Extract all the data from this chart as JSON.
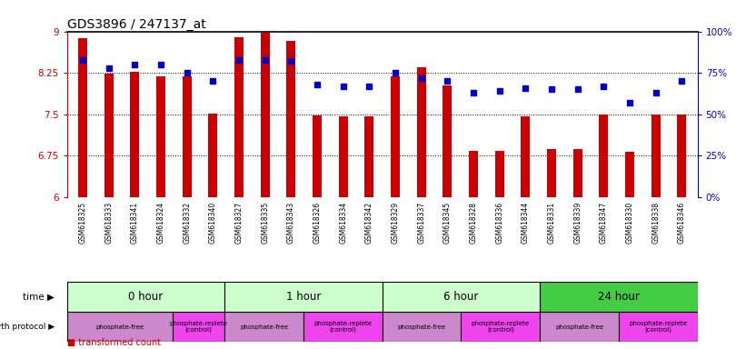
{
  "title": "GDS3896 / 247137_at",
  "samples": [
    "GSM618325",
    "GSM618333",
    "GSM618341",
    "GSM618324",
    "GSM618332",
    "GSM618340",
    "GSM618327",
    "GSM618335",
    "GSM618343",
    "GSM618326",
    "GSM618334",
    "GSM618342",
    "GSM618329",
    "GSM618337",
    "GSM618345",
    "GSM618328",
    "GSM618336",
    "GSM618344",
    "GSM618331",
    "GSM618339",
    "GSM618347",
    "GSM618330",
    "GSM618338",
    "GSM618346"
  ],
  "transformed_count": [
    8.88,
    8.23,
    8.27,
    8.19,
    8.18,
    7.52,
    8.9,
    8.97,
    8.83,
    7.48,
    7.47,
    7.46,
    8.19,
    8.35,
    8.02,
    6.84,
    6.84,
    7.46,
    6.88,
    6.88,
    7.49,
    6.82,
    7.49,
    7.49
  ],
  "percentile_rank": [
    83,
    78,
    80,
    80,
    75,
    70,
    83,
    83,
    82,
    68,
    67,
    67,
    75,
    72,
    70,
    63,
    64,
    66,
    65,
    65,
    67,
    57,
    63,
    70
  ],
  "ylim_left": [
    6,
    9
  ],
  "ylim_right": [
    0,
    100
  ],
  "yticks_left": [
    6,
    6.75,
    7.5,
    8.25,
    9
  ],
  "yticks_right": [
    0,
    25,
    50,
    75,
    100
  ],
  "ytick_labels_right": [
    "0%",
    "25%",
    "50%",
    "75%",
    "100%"
  ],
  "bar_color": "#cc0000",
  "dot_color": "#0000cc",
  "bar_bottom": 6,
  "time_groups": [
    {
      "label": "0 hour",
      "start": 0,
      "end": 6,
      "color": "#ccffcc"
    },
    {
      "label": "1 hour",
      "start": 6,
      "end": 12,
      "color": "#ccffcc"
    },
    {
      "label": "6 hour",
      "start": 12,
      "end": 18,
      "color": "#ccffcc"
    },
    {
      "label": "24 hour",
      "start": 18,
      "end": 24,
      "color": "#44cc44"
    }
  ],
  "protocol_groups": [
    {
      "label": "phosphate-free",
      "start": 0,
      "end": 4,
      "color": "#cc88cc"
    },
    {
      "label": "phosphate-replete\n(control)",
      "start": 4,
      "end": 6,
      "color": "#ee44ee"
    },
    {
      "label": "phosphate-free",
      "start": 6,
      "end": 9,
      "color": "#cc88cc"
    },
    {
      "label": "phosphate-replete\n(control)",
      "start": 9,
      "end": 12,
      "color": "#ee44ee"
    },
    {
      "label": "phosphate-free",
      "start": 12,
      "end": 15,
      "color": "#cc88cc"
    },
    {
      "label": "phosphate-replete\n(control)",
      "start": 15,
      "end": 18,
      "color": "#ee44ee"
    },
    {
      "label": "phosphate-free",
      "start": 18,
      "end": 21,
      "color": "#cc88cc"
    },
    {
      "label": "phosphate-replete\n(control)",
      "start": 21,
      "end": 24,
      "color": "#ee44ee"
    }
  ],
  "bg_color": "#ffffff",
  "bar_color_left": "#cc0000",
  "ylabel_right_color": "#0000cc",
  "sample_bg": "#dddddd",
  "n_samples": 24
}
